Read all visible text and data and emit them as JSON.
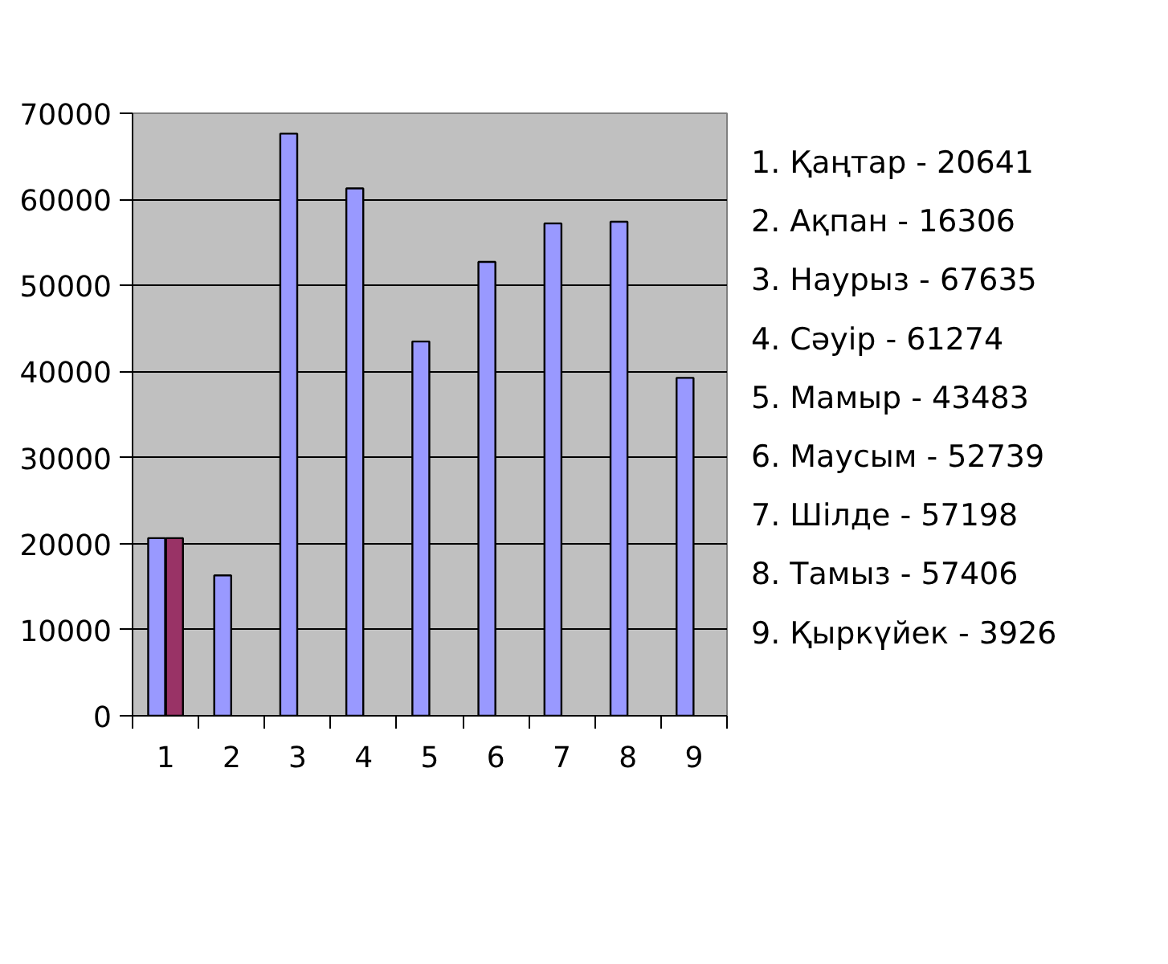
{
  "chart_data": {
    "type": "bar",
    "categories": [
      "1",
      "2",
      "3",
      "4",
      "5",
      "6",
      "7",
      "8",
      "9"
    ],
    "series": [
      {
        "color": "#9999ff",
        "values": [
          20641,
          16306,
          67635,
          61274,
          43483,
          52739,
          57198,
          57406,
          39260
        ]
      },
      {
        "color": "#993366",
        "values": [
          20641,
          null,
          null,
          null,
          null,
          null,
          null,
          null,
          null
        ]
      }
    ],
    "ylim": [
      0,
      70000
    ],
    "yticks": [
      0,
      10000,
      20000,
      30000,
      40000,
      50000,
      60000,
      70000
    ],
    "grid": "y",
    "annotations": [
      "1. Қаңтар - 20641",
      "2. Ақпан - 16306",
      "3. Наурыз - 67635",
      "4. Сәуір - 61274",
      "5. Мамыр - 43483",
      "6. Маусым - 52739",
      "7. Шілде - 57198",
      "8. Тамыз - 57406",
      "9. Қыркүйек - 3926"
    ]
  }
}
